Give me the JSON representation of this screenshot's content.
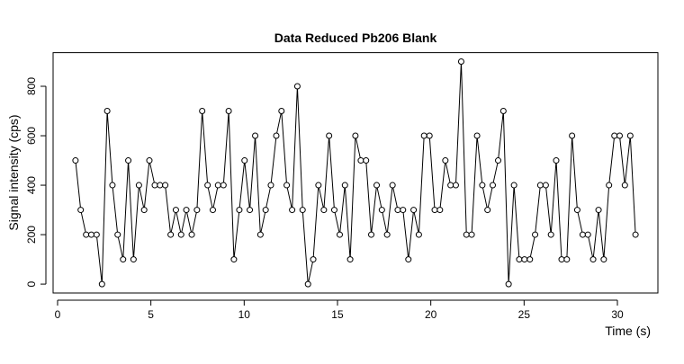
{
  "chart_data": {
    "type": "line",
    "title": "Data Reduced Pb206 Blank",
    "x_label": "Time (s)",
    "y_label": "Signal intensity (cps)",
    "x": [
      0.96,
      1.24,
      1.53,
      1.81,
      2.09,
      2.38,
      2.66,
      2.94,
      3.22,
      3.51,
      3.79,
      4.07,
      4.36,
      4.64,
      4.92,
      5.21,
      5.49,
      5.77,
      6.06,
      6.34,
      6.62,
      6.9,
      7.19,
      7.47,
      7.75,
      8.04,
      8.32,
      8.6,
      8.89,
      9.17,
      9.45,
      9.74,
      10.02,
      10.3,
      10.59,
      10.87,
      11.15,
      11.43,
      11.72,
      12.0,
      12.28,
      12.57,
      12.85,
      13.13,
      13.42,
      13.7,
      13.98,
      14.27,
      14.55,
      14.83,
      15.12,
      15.4,
      15.68,
      15.96,
      16.25,
      16.53,
      16.81,
      17.1,
      17.38,
      17.66,
      17.95,
      18.23,
      18.51,
      18.8,
      19.08,
      19.36,
      19.64,
      19.93,
      20.21,
      20.49,
      20.78,
      21.06,
      21.34,
      21.63,
      21.91,
      22.19,
      22.48,
      22.76,
      23.04,
      23.32,
      23.61,
      23.89,
      24.17,
      24.46,
      24.74,
      25.02,
      25.31,
      25.59,
      25.87,
      26.16,
      26.44,
      26.72,
      27.01,
      27.29,
      27.57,
      27.85,
      28.14,
      28.42,
      28.7,
      28.99,
      29.27,
      29.55,
      29.84,
      30.12,
      30.4,
      30.69,
      30.97
    ],
    "series": [
      {
        "color": "#000000",
        "values": [
          500,
          300,
          200,
          200,
          200,
          0,
          700,
          400,
          200,
          100,
          500,
          100,
          400,
          300,
          500,
          400,
          400,
          400,
          200,
          300,
          200,
          300,
          200,
          300,
          700,
          400,
          300,
          400,
          400,
          700,
          100,
          300,
          500,
          300,
          600,
          200,
          300,
          400,
          600,
          700,
          400,
          300,
          800,
          300,
          0,
          100,
          400,
          300,
          600,
          300,
          200,
          400,
          100,
          600,
          500,
          500,
          200,
          400,
          300,
          200,
          400,
          300,
          300,
          100,
          300,
          200,
          600,
          600,
          300,
          300,
          500,
          400,
          400,
          900,
          200,
          200,
          600,
          400,
          300,
          400,
          500,
          700,
          0,
          400,
          100,
          100,
          100,
          200,
          400,
          400,
          200,
          500,
          100,
          100,
          600,
          300,
          200,
          200,
          100,
          300,
          100,
          400,
          600,
          600,
          400,
          600,
          200
        ]
      }
    ],
    "xlim": [
      -0.24,
      32.17
    ],
    "xticks": [
      0,
      5,
      10,
      15,
      20,
      25,
      30
    ],
    "ylim": [
      -36,
      936
    ],
    "yticks": [
      0,
      200,
      400,
      600,
      800
    ]
  }
}
